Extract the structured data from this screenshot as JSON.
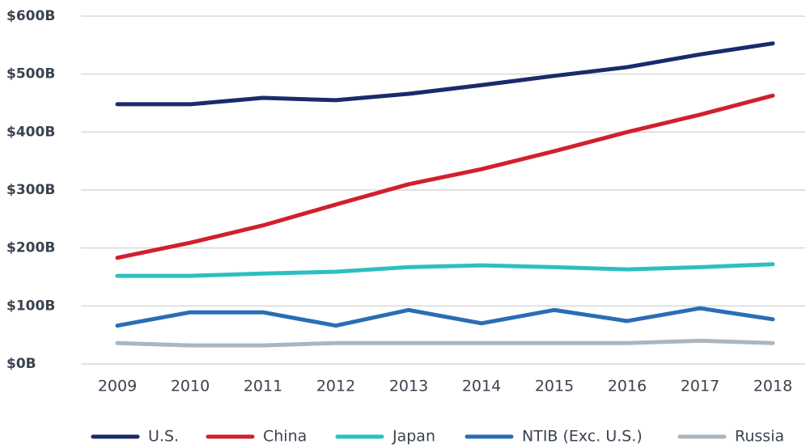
{
  "chart_data": {
    "type": "line",
    "categories": [
      "2009",
      "2010",
      "2011",
      "2012",
      "2013",
      "2014",
      "2015",
      "2016",
      "2017",
      "2018"
    ],
    "series": [
      {
        "name": "U.S.",
        "color": "#1b2a6b",
        "values": [
          448,
          448,
          459,
          455,
          466,
          481,
          497,
          512,
          534,
          553
        ]
      },
      {
        "name": "China",
        "color": "#d0202e",
        "values": [
          183,
          209,
          239,
          275,
          310,
          336,
          367,
          400,
          430,
          463
        ]
      },
      {
        "name": "Japan",
        "color": "#2dbfbf",
        "values": [
          152,
          152,
          156,
          159,
          167,
          170,
          167,
          163,
          167,
          172
        ]
      },
      {
        "name": "NTIB (Exc. U.S.)",
        "color": "#2a6db5",
        "values": [
          66,
          89,
          89,
          66,
          93,
          70,
          93,
          74,
          96,
          77
        ]
      },
      {
        "name": "Russia",
        "color": "#aab6bf",
        "values": [
          36,
          32,
          32,
          36,
          36,
          36,
          36,
          36,
          40,
          36
        ]
      }
    ],
    "ylim": [
      0,
      600
    ],
    "yticks": [
      {
        "value": 0,
        "label": "$0B"
      },
      {
        "value": 100,
        "label": "$100B"
      },
      {
        "value": 200,
        "label": "$200B"
      },
      {
        "value": 300,
        "label": "$300B"
      },
      {
        "value": 400,
        "label": "$400B"
      },
      {
        "value": 500,
        "label": "$500B"
      },
      {
        "value": 600,
        "label": "$600B"
      }
    ],
    "grid": true,
    "legend": "bottom"
  }
}
